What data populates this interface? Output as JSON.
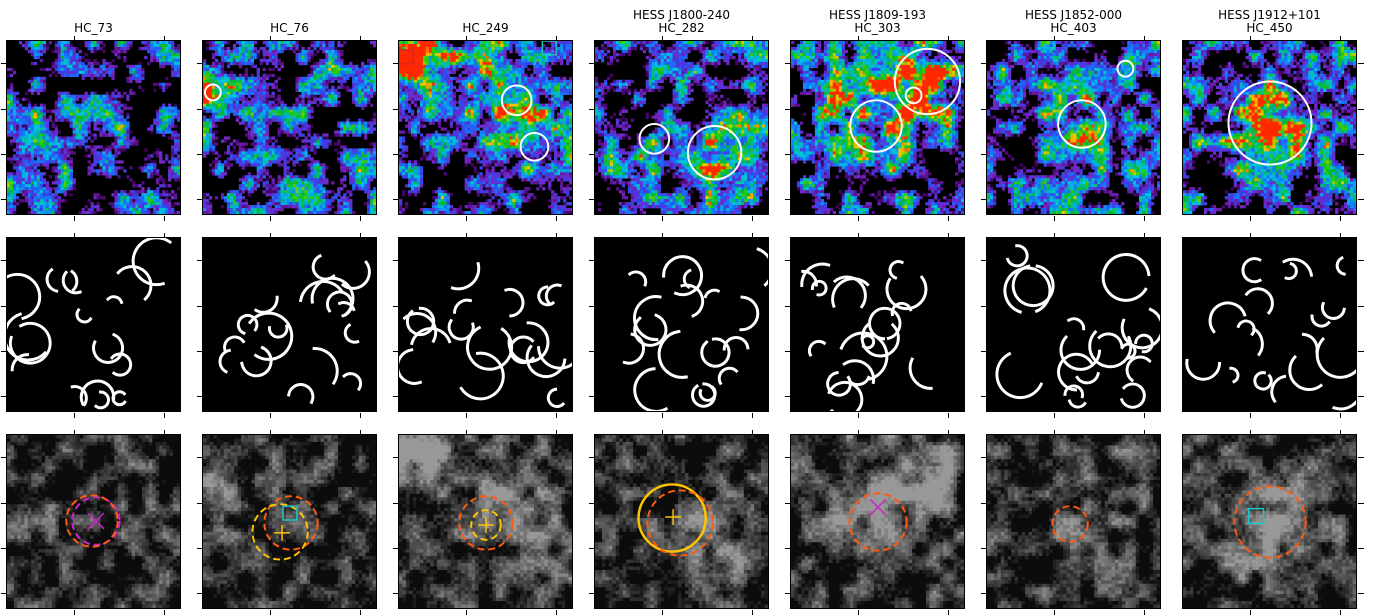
{
  "columns": [
    {
      "id": "hc73",
      "line1": "",
      "line2": "HC_73"
    },
    {
      "id": "hc76",
      "line1": "",
      "line2": "HC_76"
    },
    {
      "id": "hc249",
      "line1": "",
      "line2": "HC_249"
    },
    {
      "id": "hc282",
      "line1": "HESS J1800-240",
      "line2": "HC_282"
    },
    {
      "id": "hc303",
      "line1": "HESS J1809-193",
      "line2": "HC_303"
    },
    {
      "id": "hc403",
      "line1": "HESS J1852-000",
      "line2": "HC_403"
    },
    {
      "id": "hc450",
      "line1": "HESS J1912+101",
      "line2": "HC_450"
    }
  ],
  "colors": {
    "background": "#000000",
    "circle_white": "#ffffff",
    "marker_magenta": "#cc22cc",
    "marker_orange": "#ff5a10",
    "marker_yellow": "#ffc400",
    "marker_cyan": "#19c6c6",
    "marker_red": "#dd2222"
  },
  "rows": [
    "intensity-map",
    "edge-map",
    "grayscale-overlay"
  ]
}
